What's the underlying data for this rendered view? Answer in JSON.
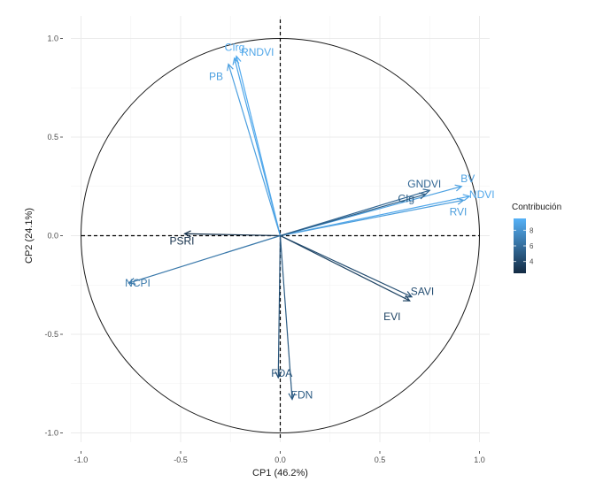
{
  "chart_data": {
    "type": "scatter",
    "subtype": "pca-correlation-circle",
    "title": "",
    "xlabel": "CP1 (46.2%)",
    "ylabel": "CP2 (24.1%)",
    "xlim": [
      -1.05,
      1.05
    ],
    "ylim": [
      -1.05,
      1.05
    ],
    "x_ticks": [
      "-1.0",
      "-0.5",
      "0.0",
      "0.5",
      "1.0"
    ],
    "y_ticks": [
      "-1.0",
      "-0.5",
      "0.0",
      "0.5",
      "1.0"
    ],
    "grid": true,
    "unit_circle": true,
    "legend": {
      "title": "Contribución",
      "placement": "right",
      "range": [
        2.5,
        9.5
      ],
      "ticks": [
        "4",
        "6",
        "8"
      ],
      "color_low": "#132B43",
      "color_high": "#56B1F7"
    },
    "variables": [
      {
        "name": "CIrg",
        "x": -0.22,
        "y": 0.91,
        "contribution": 9.2
      },
      {
        "name": "RNDVI",
        "x": -0.23,
        "y": 0.9,
        "contribution": 8.9
      },
      {
        "name": "PB",
        "x": -0.26,
        "y": 0.87,
        "contribution": 8.6
      },
      {
        "name": "BV",
        "x": 0.91,
        "y": 0.25,
        "contribution": 8.7
      },
      {
        "name": "NDVI",
        "x": 0.95,
        "y": 0.2,
        "contribution": 9.0
      },
      {
        "name": "RVI",
        "x": 0.92,
        "y": 0.18,
        "contribution": 8.5
      },
      {
        "name": "GNDVI",
        "x": 0.75,
        "y": 0.23,
        "contribution": 5.6
      },
      {
        "name": "CIg",
        "x": 0.73,
        "y": 0.21,
        "contribution": 5.2
      },
      {
        "name": "PSRI",
        "x": -0.48,
        "y": 0.01,
        "contribution": 2.8
      },
      {
        "name": "NCPI",
        "x": -0.76,
        "y": -0.24,
        "contribution": 6.5
      },
      {
        "name": "SAVI",
        "x": 0.66,
        "y": -0.31,
        "contribution": 4.3
      },
      {
        "name": "EVI",
        "x": 0.65,
        "y": -0.33,
        "contribution": 3.8
      },
      {
        "name": "FDA",
        "x": -0.01,
        "y": -0.72,
        "contribution": 4.6
      },
      {
        "name": "FDN",
        "x": 0.06,
        "y": -0.83,
        "contribution": 5.0
      }
    ]
  }
}
